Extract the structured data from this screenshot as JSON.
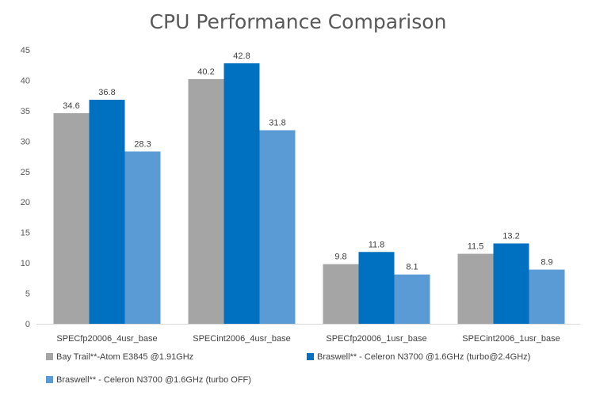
{
  "chart_data": {
    "type": "bar",
    "title": "CPU Performance Comparison",
    "xlabel": "",
    "ylabel": "",
    "ylim": [
      0,
      45
    ],
    "yticks": [
      0,
      5,
      10,
      15,
      20,
      25,
      30,
      35,
      40,
      45
    ],
    "grid": false,
    "legend_position": "bottom",
    "categories": [
      "SPECfp20006_4usr_base",
      "SPECint2006_4usr_base",
      "SPECfp20006_1usr_base",
      "SPECint2006_1usr_base"
    ],
    "series": [
      {
        "name": "Bay Trail**-Atom E3845 @1.91GHz",
        "color": "#A5A5A5",
        "values": [
          34.6,
          40.2,
          9.8,
          11.5
        ]
      },
      {
        "name": "Braswell** - Celeron N3700 @1.6GHz (turbo@2.4GHz)",
        "color": "#0070C0",
        "values": [
          36.8,
          42.8,
          11.8,
          13.2
        ]
      },
      {
        "name": "Braswell** - Celeron N3700 @1.6GHz (turbo OFF)",
        "color": "#5B9BD5",
        "values": [
          28.3,
          31.8,
          8.1,
          8.9
        ]
      }
    ]
  }
}
